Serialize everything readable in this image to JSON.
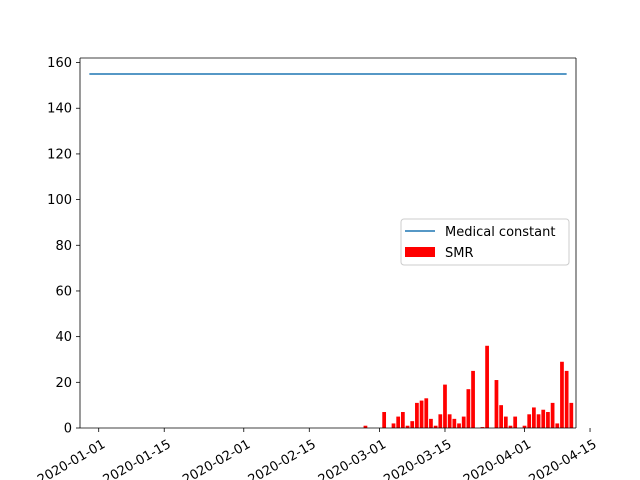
{
  "chart_data": {
    "type": "bar",
    "title": "",
    "xlabel": "",
    "ylabel": "",
    "x_axis": {
      "scale": "date",
      "range": [
        "2019-12-28",
        "2020-04-12"
      ],
      "ticks": [
        "2020-01-01",
        "2020-01-15",
        "2020-02-01",
        "2020-02-15",
        "2020-03-01",
        "2020-03-15",
        "2020-04-01",
        "2020-04-15"
      ],
      "tick_rotation_deg": 30
    },
    "y_axis": {
      "range": [
        0,
        162
      ],
      "ticks": [
        0,
        20,
        40,
        60,
        80,
        100,
        120,
        140,
        160
      ]
    },
    "grid": false,
    "legend": {
      "placement": "center-right",
      "entries": [
        {
          "name": "Medical constant",
          "marker": "line",
          "color": "#1f77b4"
        },
        {
          "name": "SMR",
          "marker": "patch",
          "color": "#ff0000"
        }
      ]
    },
    "series": [
      {
        "name": "Medical constant",
        "kind": "line",
        "color": "#1f77b4",
        "points": [
          {
            "x": "2019-12-30",
            "y": 155
          },
          {
            "x": "2020-04-10",
            "y": 155
          }
        ]
      },
      {
        "name": "SMR",
        "kind": "bar",
        "color": "#ff0000",
        "points": [
          {
            "x": "2020-02-27",
            "y": 1
          },
          {
            "x": "2020-03-02",
            "y": 7
          },
          {
            "x": "2020-03-04",
            "y": 2
          },
          {
            "x": "2020-03-05",
            "y": 5
          },
          {
            "x": "2020-03-06",
            "y": 7
          },
          {
            "x": "2020-03-07",
            "y": 1
          },
          {
            "x": "2020-03-08",
            "y": 3
          },
          {
            "x": "2020-03-09",
            "y": 11
          },
          {
            "x": "2020-03-10",
            "y": 12
          },
          {
            "x": "2020-03-11",
            "y": 13
          },
          {
            "x": "2020-03-12",
            "y": 4
          },
          {
            "x": "2020-03-13",
            "y": 1
          },
          {
            "x": "2020-03-14",
            "y": 6
          },
          {
            "x": "2020-03-15",
            "y": 19
          },
          {
            "x": "2020-03-16",
            "y": 6
          },
          {
            "x": "2020-03-17",
            "y": 4
          },
          {
            "x": "2020-03-18",
            "y": 2
          },
          {
            "x": "2020-03-19",
            "y": 5
          },
          {
            "x": "2020-03-20",
            "y": 17
          },
          {
            "x": "2020-03-21",
            "y": 25
          },
          {
            "x": "2020-03-23",
            "y": 0.4
          },
          {
            "x": "2020-03-24",
            "y": 36
          },
          {
            "x": "2020-03-26",
            "y": 21
          },
          {
            "x": "2020-03-27",
            "y": 10
          },
          {
            "x": "2020-03-28",
            "y": 5
          },
          {
            "x": "2020-03-29",
            "y": 1
          },
          {
            "x": "2020-03-30",
            "y": 5
          },
          {
            "x": "2020-04-01",
            "y": 1
          },
          {
            "x": "2020-04-02",
            "y": 6
          },
          {
            "x": "2020-04-03",
            "y": 9
          },
          {
            "x": "2020-04-04",
            "y": 6
          },
          {
            "x": "2020-04-05",
            "y": 8
          },
          {
            "x": "2020-04-06",
            "y": 7
          },
          {
            "x": "2020-04-07",
            "y": 11
          },
          {
            "x": "2020-04-08",
            "y": 2
          },
          {
            "x": "2020-04-09",
            "y": 29
          },
          {
            "x": "2020-04-10",
            "y": 25
          },
          {
            "x": "2020-04-11",
            "y": 11
          }
        ]
      }
    ]
  }
}
